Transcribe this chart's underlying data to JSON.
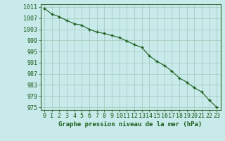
{
  "x": [
    0,
    1,
    2,
    3,
    4,
    5,
    6,
    7,
    8,
    9,
    10,
    11,
    12,
    13,
    14,
    15,
    16,
    17,
    18,
    19,
    20,
    21,
    22,
    23
  ],
  "y": [
    1010.5,
    1008.5,
    1007.5,
    1006.2,
    1005.0,
    1004.5,
    1003.0,
    1002.0,
    1001.5,
    1000.8,
    1000.0,
    998.8,
    997.5,
    996.5,
    993.5,
    991.5,
    990.0,
    988.0,
    985.5,
    984.0,
    982.0,
    980.5,
    977.5,
    975.0
  ],
  "ylim": [
    974,
    1012
  ],
  "yticks": [
    975,
    979,
    983,
    987,
    991,
    995,
    999,
    1003,
    1007,
    1011
  ],
  "xticks": [
    0,
    1,
    2,
    3,
    4,
    5,
    6,
    7,
    8,
    9,
    10,
    11,
    12,
    13,
    14,
    15,
    16,
    17,
    18,
    19,
    20,
    21,
    22,
    23
  ],
  "xlabel": "Graphe pression niveau de la mer (hPa)",
  "line_color": "#1a5c1a",
  "marker": "+",
  "background_color": "#c8eaea",
  "grid_color": "#a0c8b8",
  "tick_label_color": "#1a5c1a",
  "xlabel_color": "#1a5c1a",
  "xlabel_fontsize": 6.5,
  "tick_fontsize": 6.0,
  "spine_color": "#336633"
}
